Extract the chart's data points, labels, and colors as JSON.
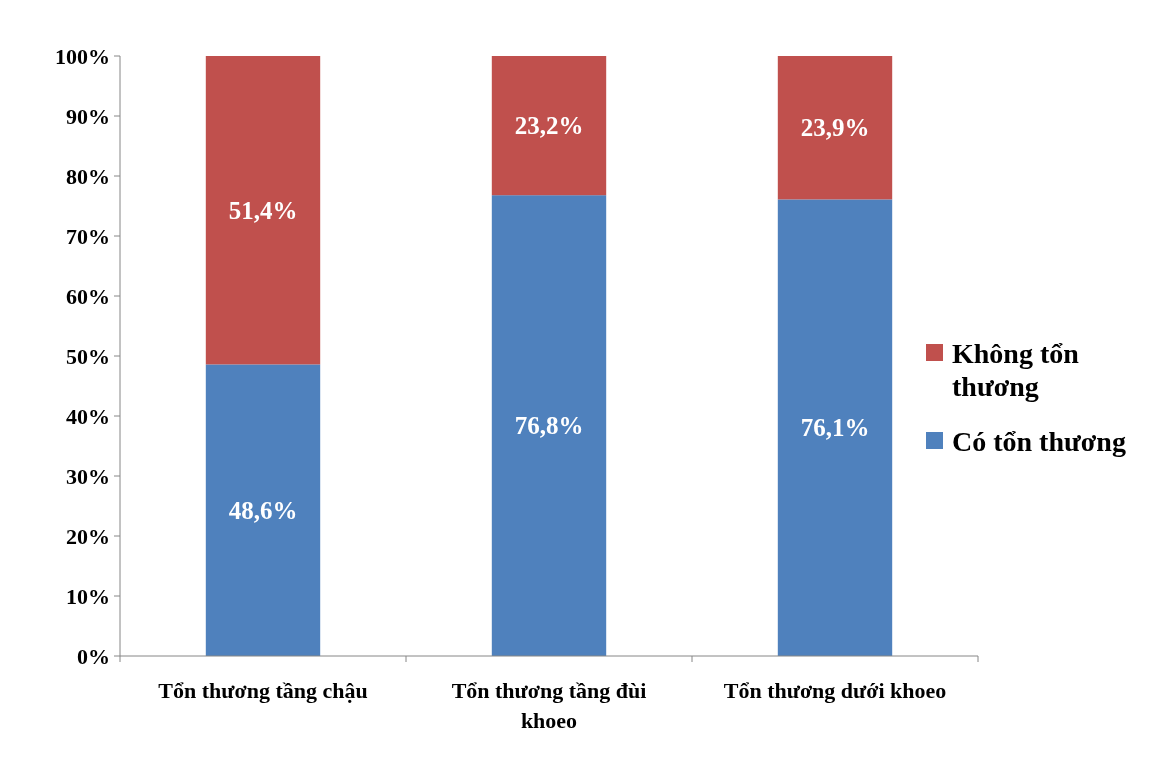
{
  "chart_data": {
    "type": "bar",
    "stacked": true,
    "categories": [
      "Tổn thương tầng chậu",
      "Tổn thương tầng đùi khoeo",
      "Tổn thương dưới khoeo"
    ],
    "series": [
      {
        "name": "Có tổn thương",
        "color": "#4f81bd",
        "values": [
          48.6,
          76.8,
          76.1
        ],
        "value_labels": [
          "48,6%",
          "76,8%",
          "76,1%"
        ]
      },
      {
        "name": "Không tổn thương",
        "color": "#c0504d",
        "values": [
          51.4,
          23.2,
          23.9
        ],
        "value_labels": [
          "51,4%",
          "23,2%",
          "23,9%"
        ]
      }
    ],
    "ylim": [
      0,
      100
    ],
    "yticks": [
      {
        "value": 0,
        "label": "0%"
      },
      {
        "value": 10,
        "label": "10%"
      },
      {
        "value": 20,
        "label": "20%"
      },
      {
        "value": 30,
        "label": "30%"
      },
      {
        "value": 40,
        "label": "40%"
      },
      {
        "value": 50,
        "label": "50%"
      },
      {
        "value": 60,
        "label": "60%"
      },
      {
        "value": 70,
        "label": "70%"
      },
      {
        "value": 80,
        "label": "80%"
      },
      {
        "value": 90,
        "label": "90%"
      },
      {
        "value": 100,
        "label": "100%"
      }
    ],
    "legend": "right",
    "grid": false
  }
}
